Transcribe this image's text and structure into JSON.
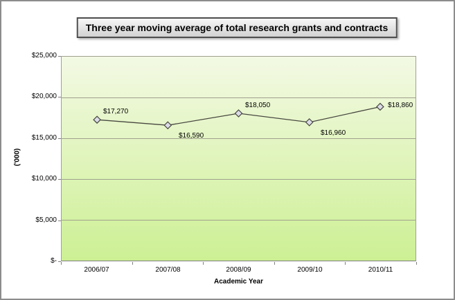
{
  "title": "Three year moving average of total research grants and contracts",
  "y_axis": {
    "title": "('000)",
    "tick_labels": [
      "$25,000",
      "$20,000",
      "$15,000",
      "$10,000",
      "$5,000",
      "$-"
    ]
  },
  "x_axis": {
    "title": "Academic Year",
    "labels": [
      "2006/07",
      "2007/08",
      "2008/09",
      "2009/10",
      "2010/11"
    ]
  },
  "chart_data": {
    "type": "line",
    "title": "Three year moving average of total research grants and contracts",
    "xlabel": "Academic Year",
    "ylabel": "('000)",
    "categories": [
      "2006/07",
      "2007/08",
      "2008/09",
      "2009/10",
      "2010/11"
    ],
    "values": [
      17270,
      16590,
      18050,
      16960,
      18860
    ],
    "point_labels": [
      "$17,270",
      "$16,590",
      "$18,050",
      "$16,960",
      "$18,860"
    ],
    "label_positions": [
      "above-right",
      "below-right",
      "above-right",
      "below-right",
      "right"
    ],
    "ylim": [
      0,
      25000
    ],
    "ytick_step": 5000,
    "grid": true,
    "legend": false,
    "marker": "diamond"
  },
  "colors": {
    "plot_gradient_top": "#f3f9e4",
    "plot_gradient_bottom": "#cdf094",
    "gridline": "#9fa08e",
    "axis_line": "#7f7f7f",
    "series_line": "#47473f",
    "marker_fill": "#dbdbe7",
    "marker_stroke": "#45453e",
    "title_border": "#4d4d4d"
  }
}
